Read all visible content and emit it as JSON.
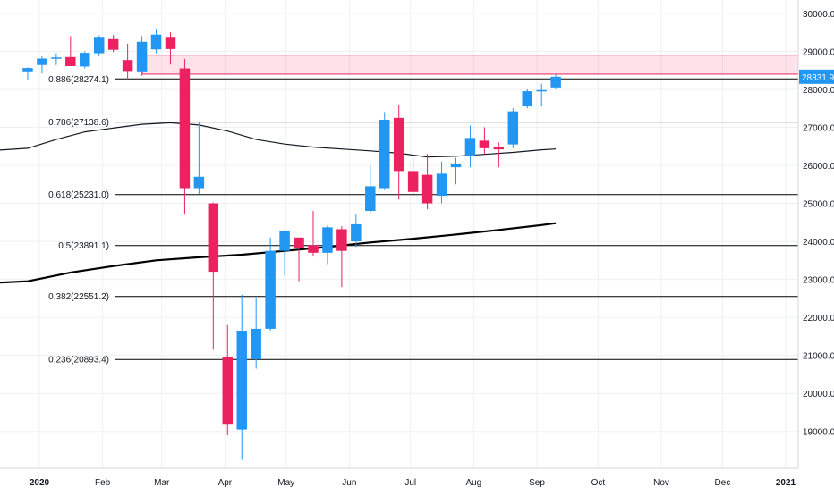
{
  "chart_data": {
    "type": "candlestick",
    "timeframe": "weekly",
    "colors": {
      "up": "#2196f3",
      "down": "#ec215f",
      "grid": "#eef0f3",
      "fib": "#000000",
      "zone": "#ec215f",
      "price_tag": "#2196f3"
    },
    "y_axis": {
      "position": "right",
      "range": [
        18100,
        30350
      ],
      "ticks": [
        "19000.0",
        "20000.0",
        "21000.0",
        "22000.0",
        "23000.0",
        "24000.0",
        "25000.0",
        "26000.0",
        "27000.0",
        "28000.0",
        "29000.0",
        "30000.0"
      ]
    },
    "x_axis": {
      "ticks": [
        {
          "label": "2020",
          "date": "2020-01-01",
          "bold": true
        },
        {
          "label": "Feb",
          "date": "2020-02-01"
        },
        {
          "label": "Mar",
          "date": "2020-03-01"
        },
        {
          "label": "Apr",
          "date": "2020-04-01"
        },
        {
          "label": "May",
          "date": "2020-05-01"
        },
        {
          "label": "Jun",
          "date": "2020-06-01"
        },
        {
          "label": "Jul",
          "date": "2020-07-01"
        },
        {
          "label": "Aug",
          "date": "2020-08-01"
        },
        {
          "label": "Sep",
          "date": "2020-09-01"
        },
        {
          "label": "Oct",
          "date": "2020-10-01"
        },
        {
          "label": "Nov",
          "date": "2020-11-01"
        },
        {
          "label": "Dec",
          "date": "2020-12-01"
        },
        {
          "label": "2021",
          "date": "2021-01-01",
          "bold": true
        }
      ]
    },
    "last_price": "28331.9",
    "fib_levels": [
      {
        "ratio": 0.886,
        "value": 28274.1,
        "label": "0.886(28274.1)"
      },
      {
        "ratio": 0.786,
        "value": 27138.6,
        "label": "0.786(27138.6)"
      },
      {
        "ratio": 0.618,
        "value": 25231.0,
        "label": "0.618(25231.0)"
      },
      {
        "ratio": 0.5,
        "value": 23891.1,
        "label": "0.5(23891.1)"
      },
      {
        "ratio": 0.382,
        "value": 22551.2,
        "label": "0.382(22551.2)"
      },
      {
        "ratio": 0.236,
        "value": 20893.4,
        "label": "0.236(20893.4)"
      }
    ],
    "resistance_zone": {
      "low": 28400,
      "high": 28900,
      "start": "2020-02-24"
    },
    "candles": [
      {
        "date": "2019-12-23",
        "open": 28450,
        "high": 28580,
        "low": 28260,
        "close": 28560
      },
      {
        "date": "2019-12-30",
        "open": 28640,
        "high": 28870,
        "low": 28420,
        "close": 28810
      },
      {
        "date": "2020-01-06",
        "open": 28820,
        "high": 28950,
        "low": 28640,
        "close": 28840
      },
      {
        "date": "2020-01-13",
        "open": 28850,
        "high": 29400,
        "low": 28700,
        "close": 28610
      },
      {
        "date": "2020-01-20",
        "open": 28600,
        "high": 29000,
        "low": 28550,
        "close": 28960
      },
      {
        "date": "2020-01-27",
        "open": 28950,
        "high": 29420,
        "low": 28870,
        "close": 29380
      },
      {
        "date": "2020-02-03",
        "open": 29320,
        "high": 29430,
        "low": 28980,
        "close": 29040
      },
      {
        "date": "2020-02-10",
        "open": 28770,
        "high": 29200,
        "low": 28250,
        "close": 28460
      },
      {
        "date": "2020-02-17",
        "open": 28450,
        "high": 29400,
        "low": 28350,
        "close": 29250
      },
      {
        "date": "2020-02-24",
        "open": 29050,
        "high": 29570,
        "low": 28950,
        "close": 29440
      },
      {
        "date": "2020-03-02",
        "open": 29380,
        "high": 29500,
        "low": 28650,
        "close": 29060
      },
      {
        "date": "2020-03-09",
        "open": 28550,
        "high": 28800,
        "low": 24700,
        "close": 25400
      },
      {
        "date": "2020-03-16",
        "open": 25400,
        "high": 27150,
        "low": 25250,
        "close": 25700
      },
      {
        "date": "2020-03-23",
        "open": 25000,
        "high": 25020,
        "low": 21150,
        "close": 23200
      },
      {
        "date": "2020-03-30",
        "open": 20950,
        "high": 21800,
        "low": 18900,
        "close": 19200
      },
      {
        "date": "2020-04-06",
        "open": 19050,
        "high": 22600,
        "low": 18250,
        "close": 21650
      },
      {
        "date": "2020-04-13",
        "open": 20900,
        "high": 22500,
        "low": 20650,
        "close": 21700
      },
      {
        "date": "2020-04-20",
        "open": 21700,
        "high": 24100,
        "low": 21650,
        "close": 23750
      },
      {
        "date": "2020-04-27",
        "open": 23750,
        "high": 24300,
        "low": 23100,
        "close": 24280
      },
      {
        "date": "2020-05-04",
        "open": 24100,
        "high": 24100,
        "low": 22950,
        "close": 23820
      },
      {
        "date": "2020-05-11",
        "open": 23900,
        "high": 24800,
        "low": 23600,
        "close": 23700
      },
      {
        "date": "2020-05-18",
        "open": 23700,
        "high": 24420,
        "low": 23400,
        "close": 24370
      },
      {
        "date": "2020-05-25",
        "open": 24320,
        "high": 24400,
        "low": 22800,
        "close": 23750
      },
      {
        "date": "2020-06-01",
        "open": 24000,
        "high": 24700,
        "low": 23850,
        "close": 24450
      },
      {
        "date": "2020-06-08",
        "open": 24800,
        "high": 26000,
        "low": 24700,
        "close": 25450
      },
      {
        "date": "2020-06-15",
        "open": 25400,
        "high": 27400,
        "low": 25350,
        "close": 27200
      },
      {
        "date": "2020-06-22",
        "open": 27250,
        "high": 27600,
        "low": 25100,
        "close": 25850
      },
      {
        "date": "2020-06-29",
        "open": 25850,
        "high": 26200,
        "low": 25200,
        "close": 25300
      },
      {
        "date": "2020-07-06",
        "open": 25750,
        "high": 26300,
        "low": 24850,
        "close": 25000
      },
      {
        "date": "2020-07-13",
        "open": 25200,
        "high": 26100,
        "low": 25000,
        "close": 25780
      },
      {
        "date": "2020-07-20",
        "open": 25950,
        "high": 26200,
        "low": 25500,
        "close": 26050
      },
      {
        "date": "2020-07-27",
        "open": 26250,
        "high": 27050,
        "low": 25950,
        "close": 26720
      },
      {
        "date": "2020-08-03",
        "open": 26650,
        "high": 27000,
        "low": 26300,
        "close": 26450
      },
      {
        "date": "2020-08-10",
        "open": 26480,
        "high": 26600,
        "low": 25950,
        "close": 26420
      },
      {
        "date": "2020-08-17",
        "open": 26550,
        "high": 27500,
        "low": 26450,
        "close": 27420
      },
      {
        "date": "2020-08-24",
        "open": 27550,
        "high": 28000,
        "low": 27500,
        "close": 27950
      },
      {
        "date": "2020-08-31",
        "open": 27950,
        "high": 28150,
        "low": 27550,
        "close": 27980
      },
      {
        "date": "2020-09-07",
        "open": 28050,
        "high": 28400,
        "low": 28000,
        "close": 28332
      }
    ],
    "moving_averages": [
      {
        "style": "thin",
        "color": "#131722",
        "points": [
          {
            "date": "2019-12-23",
            "value": 26450
          },
          {
            "date": "2020-01-06",
            "value": 26680
          },
          {
            "date": "2020-01-20",
            "value": 26880
          },
          {
            "date": "2020-02-03",
            "value": 26980
          },
          {
            "date": "2020-02-17",
            "value": 27080
          },
          {
            "date": "2020-03-02",
            "value": 27120
          },
          {
            "date": "2020-03-16",
            "value": 27060
          },
          {
            "date": "2020-03-30",
            "value": 26900
          },
          {
            "date": "2020-04-13",
            "value": 26680
          },
          {
            "date": "2020-04-27",
            "value": 26560
          },
          {
            "date": "2020-05-11",
            "value": 26480
          },
          {
            "date": "2020-05-25",
            "value": 26430
          },
          {
            "date": "2020-06-08",
            "value": 26380
          },
          {
            "date": "2020-06-22",
            "value": 26320
          },
          {
            "date": "2020-07-06",
            "value": 26220
          },
          {
            "date": "2020-07-20",
            "value": 26240
          },
          {
            "date": "2020-08-03",
            "value": 26290
          },
          {
            "date": "2020-08-17",
            "value": 26340
          },
          {
            "date": "2020-08-31",
            "value": 26410
          },
          {
            "date": "2020-09-07",
            "value": 26430
          }
        ]
      },
      {
        "style": "thick",
        "color": "#000000",
        "points": [
          {
            "date": "2019-12-23",
            "value": 22950
          },
          {
            "date": "2020-01-13",
            "value": 23180
          },
          {
            "date": "2020-02-03",
            "value": 23350
          },
          {
            "date": "2020-02-24",
            "value": 23500
          },
          {
            "date": "2020-03-16",
            "value": 23580
          },
          {
            "date": "2020-04-06",
            "value": 23650
          },
          {
            "date": "2020-04-27",
            "value": 23750
          },
          {
            "date": "2020-05-18",
            "value": 23850
          },
          {
            "date": "2020-06-08",
            "value": 23970
          },
          {
            "date": "2020-06-29",
            "value": 24070
          },
          {
            "date": "2020-07-20",
            "value": 24180
          },
          {
            "date": "2020-08-10",
            "value": 24300
          },
          {
            "date": "2020-08-31",
            "value": 24430
          },
          {
            "date": "2020-09-07",
            "value": 24480
          }
        ]
      }
    ]
  }
}
